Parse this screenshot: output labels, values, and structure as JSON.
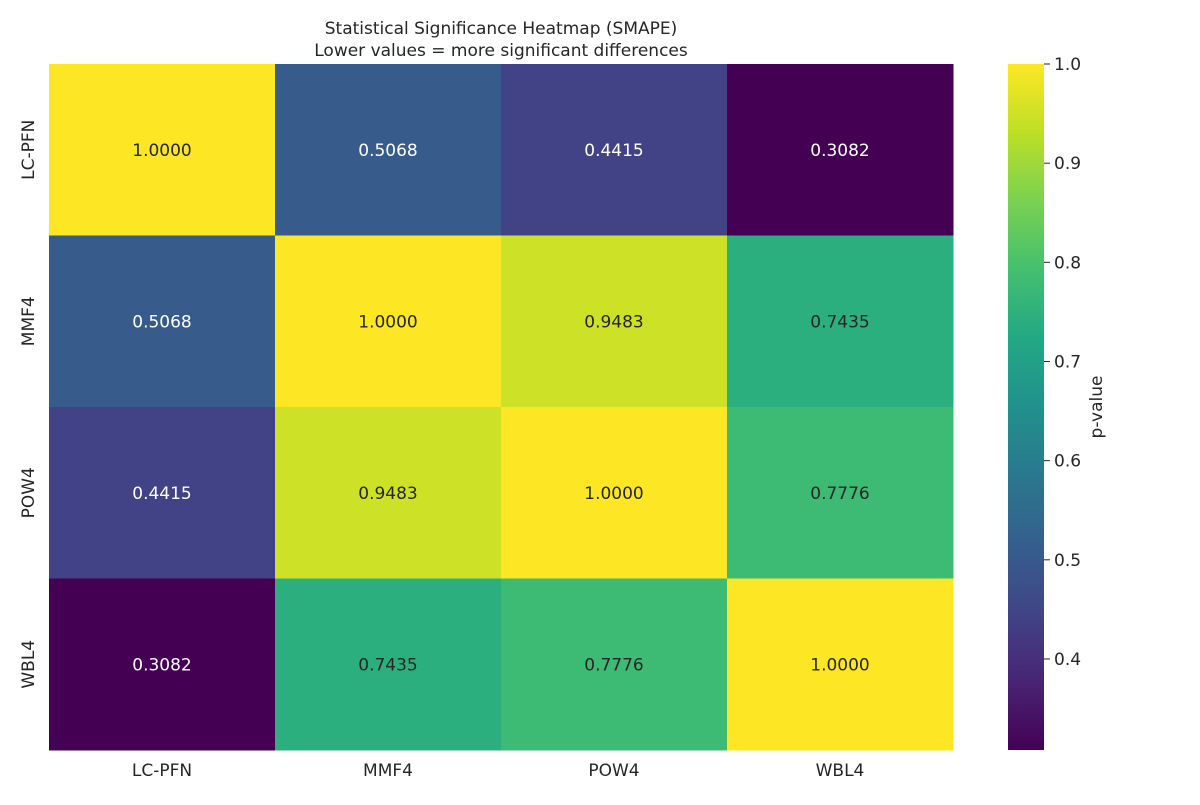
{
  "chart_data": {
    "type": "heatmap",
    "title": "Statistical Significance Heatmap (SMAPE)",
    "subtitle": "Lower values = more significant differences",
    "rows": [
      "LC-PFN",
      "MMF4",
      "POW4",
      "WBL4"
    ],
    "columns": [
      "LC-PFN",
      "MMF4",
      "POW4",
      "WBL4"
    ],
    "values": [
      [
        1.0,
        0.5068,
        0.4415,
        0.3082
      ],
      [
        0.5068,
        1.0,
        0.9483,
        0.7435
      ],
      [
        0.4415,
        0.9483,
        1.0,
        0.7776
      ],
      [
        0.3082,
        0.7435,
        0.7776,
        1.0
      ]
    ],
    "value_labels": [
      [
        "1.0000",
        "0.5068",
        "0.4415",
        "0.3082"
      ],
      [
        "0.5068",
        "1.0000",
        "0.9483",
        "0.7435"
      ],
      [
        "0.4415",
        "0.9483",
        "1.0000",
        "0.7776"
      ],
      [
        "0.3082",
        "0.7435",
        "0.7776",
        "1.0000"
      ]
    ],
    "colormap": "viridis",
    "vmin": 0.3082,
    "vmax": 1.0,
    "colorbar": {
      "label": "p-value",
      "ticks": [
        0.4,
        0.5,
        0.6,
        0.7,
        0.8,
        0.9,
        1.0
      ],
      "tick_labels": [
        "0.4",
        "0.5",
        "0.6",
        "0.7",
        "0.8",
        "0.9",
        "1.0"
      ],
      "placement": "right"
    },
    "grid": false
  }
}
